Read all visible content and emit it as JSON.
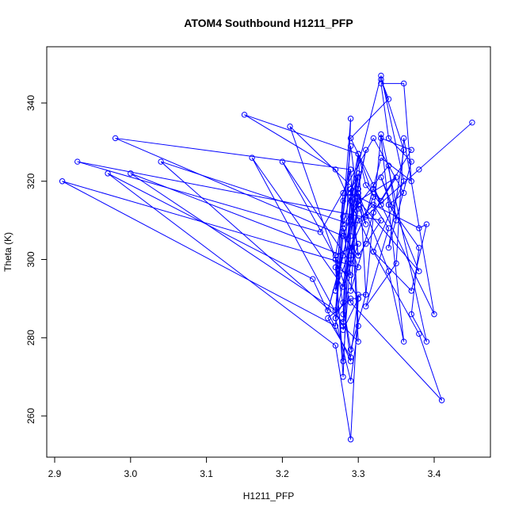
{
  "chart_data": {
    "type": "line",
    "title": "ATOM4 Southbound H1211_PFP",
    "xlabel": "H1211_PFP",
    "ylabel": "Theta (K)",
    "xlim": [
      2.9,
      3.45
    ],
    "ylim": [
      253,
      350
    ],
    "x_ticks": [
      2.9,
      3.0,
      3.1,
      3.2,
      3.3,
      3.4
    ],
    "x_tick_labels": [
      "2.9",
      "3.0",
      "3.1",
      "3.2",
      "3.3",
      "3.4"
    ],
    "y_ticks": [
      260,
      280,
      300,
      320,
      340
    ],
    "y_tick_labels": [
      "260",
      "280",
      "300",
      "320",
      "340"
    ],
    "grid": false,
    "line_color": "#0000ff",
    "marker": "open-circle",
    "series": [
      {
        "x": [
          3.45,
          3.38,
          3.31,
          3.33,
          3.37,
          3.36,
          3.33,
          3.34,
          3.37,
          3.34,
          3.36,
          3.33,
          3.34,
          3.29,
          3.32,
          3.33,
          3.31,
          3.3,
          3.32,
          3.29,
          3.3,
          3.32,
          3.34,
          3.31,
          3.35,
          3.36,
          3.4,
          3.32,
          3.33,
          3.35,
          3.3,
          3.38,
          3.33,
          3.35,
          3.34,
          3.28,
          3.33,
          3.36,
          3.32,
          3.37,
          3.39,
          3.38,
          3.29,
          3.3,
          3.15,
          3.27,
          3.32,
          3.38,
          3.41,
          3.29,
          3.21,
          3.3,
          3.34,
          3.36,
          3.33,
          3.37,
          3.32,
          3.29,
          3.3,
          3.31,
          3.27,
          3.28,
          3.29,
          2.98,
          3.28,
          3.3,
          3.31,
          3.33,
          2.93,
          3.25,
          3.32,
          3.36,
          3.34,
          3.38,
          3.37,
          3.39,
          3.33,
          3.31,
          3.3,
          3.29,
          3.26,
          3.29,
          3.3,
          3.2,
          3.29,
          3.3,
          3.31,
          3.29,
          3.3,
          3.29,
          3.3,
          3.29,
          3.3,
          3.28,
          3.27,
          3.29,
          3.27,
          3.28,
          3.29,
          3.24,
          2.97,
          3.27,
          3.29,
          3.3,
          3.28,
          3.29,
          3.3,
          3.31,
          3.29,
          3.27,
          3.28,
          3.29,
          3.3,
          3.28,
          3.16,
          3.28,
          3.3,
          3.27,
          3.29,
          3.3,
          3.29,
          3.27,
          3.28,
          3.3,
          3.26,
          3.28,
          3.0,
          3.27,
          3.29,
          3.28,
          3.29,
          3.04,
          3.28,
          3.29,
          3.3,
          3.29,
          3.28,
          3.27,
          3.29,
          3.28,
          3.3,
          2.91,
          3.27,
          3.28,
          3.29,
          3.3,
          3.29
        ],
        "y": [
          335,
          323,
          311,
          326,
          320,
          345,
          345,
          331,
          325,
          303,
          328,
          346,
          341,
          331,
          319,
          314,
          319,
          327,
          316,
          303,
          310,
          314,
          308,
          288,
          299,
          331,
          286,
          318,
          315,
          321,
          315,
          297,
          321,
          310,
          324,
          309,
          347,
          320,
          302,
          292,
          309,
          308,
          317,
          327,
          337,
          323,
          302,
          281,
          264,
          289,
          334,
          317,
          297,
          279,
          331,
          328,
          312,
          292,
          318,
          328,
          292,
          317,
          323,
          331,
          306,
          301,
          304,
          310,
          325,
          307,
          331,
          317,
          314,
          303,
          286,
          279,
          332,
          291,
          291,
          275,
          285,
          290,
          290,
          325,
          299,
          317,
          309,
          318,
          301,
          315,
          322,
          310,
          321,
          315,
          292,
          303,
          285,
          289,
          274,
          295,
          322,
          278,
          254,
          290,
          282,
          306,
          327,
          291,
          277,
          300,
          270,
          316,
          279,
          283,
          326,
          293,
          304,
          301,
          323,
          283,
          269,
          285,
          306,
          316,
          287,
          301,
          322,
          287,
          336,
          286,
          309,
          325,
          284,
          318,
          313,
          301,
          274,
          298,
          296,
          308,
          298,
          320,
          283,
          311,
          329,
          314,
          311
        ]
      }
    ]
  }
}
